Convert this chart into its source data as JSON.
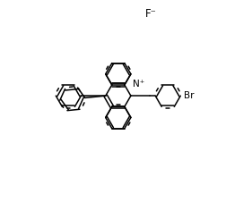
{
  "background_color": "#ffffff",
  "line_color": "#000000",
  "line_width": 1.1,
  "font_size": 7.5,
  "F_label": "F⁻",
  "N_label": "N⁺",
  "Br_label": "Br",
  "fig_width": 2.81,
  "fig_height": 2.36,
  "dpi": 100
}
